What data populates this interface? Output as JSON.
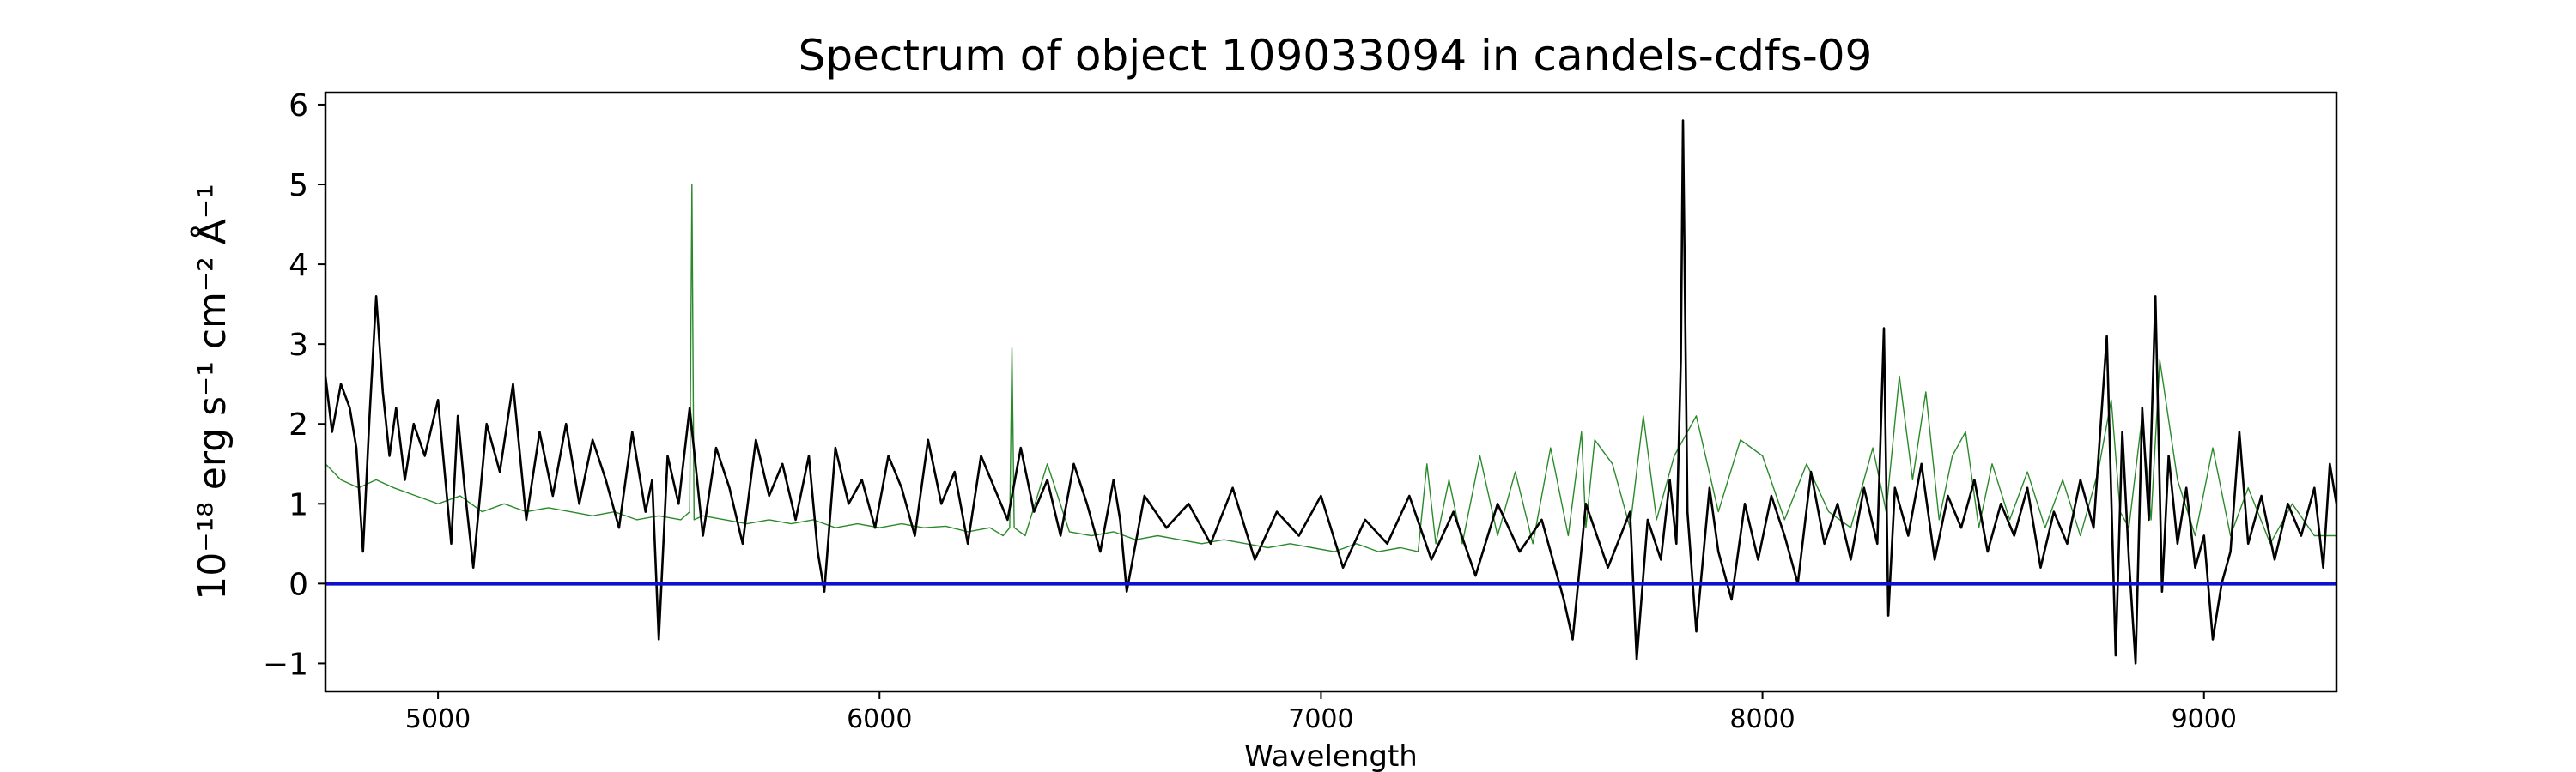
{
  "chart_data": {
    "type": "line",
    "title": "Spectrum of object 109033094 in candels-cdfs-09",
    "xlabel": "Wavelength",
    "ylabel": "10⁻¹⁸ erg s⁻¹ cm⁻² Å⁻¹",
    "xlim": [
      4745,
      9300
    ],
    "ylim": [
      -1.35,
      6.15
    ],
    "xticks": [
      5000,
      6000,
      7000,
      8000,
      9000
    ],
    "yticks": [
      -1,
      0,
      1,
      2,
      3,
      4,
      5,
      6
    ],
    "ytick_labels": [
      "−1",
      "0",
      "1",
      "2",
      "3",
      "4",
      "5",
      "6"
    ],
    "grid": false,
    "colors": {
      "flux": "#000000",
      "noise": "#2a8a2a",
      "zero": "#1010cc"
    },
    "series": [
      {
        "role": "flux",
        "x": [
          4745,
          4760,
          4780,
          4800,
          4815,
          4830,
          4845,
          4860,
          4875,
          4890,
          4905,
          4925,
          4945,
          4970,
          5000,
          5030,
          5045,
          5060,
          5080,
          5110,
          5140,
          5170,
          5200,
          5230,
          5260,
          5290,
          5320,
          5350,
          5380,
          5410,
          5440,
          5470,
          5485,
          5500,
          5520,
          5545,
          5570,
          5600,
          5630,
          5660,
          5690,
          5720,
          5750,
          5780,
          5810,
          5840,
          5860,
          5875,
          5900,
          5930,
          5960,
          5990,
          6020,
          6050,
          6080,
          6110,
          6140,
          6170,
          6200,
          6230,
          6260,
          6290,
          6320,
          6350,
          6380,
          6410,
          6440,
          6470,
          6500,
          6530,
          6545,
          6560,
          6600,
          6650,
          6700,
          6750,
          6800,
          6850,
          6900,
          6950,
          7000,
          7050,
          7100,
          7150,
          7200,
          7250,
          7300,
          7350,
          7400,
          7450,
          7500,
          7550,
          7570,
          7600,
          7650,
          7700,
          7715,
          7740,
          7770,
          7790,
          7805,
          7815,
          7820,
          7830,
          7850,
          7880,
          7900,
          7930,
          7960,
          7990,
          8020,
          8050,
          8080,
          8110,
          8140,
          8170,
          8200,
          8230,
          8260,
          8275,
          8285,
          8300,
          8330,
          8360,
          8390,
          8420,
          8450,
          8480,
          8510,
          8540,
          8570,
          8600,
          8630,
          8660,
          8690,
          8720,
          8750,
          8780,
          8800,
          8815,
          8830,
          8845,
          8860,
          8875,
          8890,
          8905,
          8920,
          8940,
          8960,
          8980,
          9000,
          9020,
          9040,
          9060,
          9080,
          9100,
          9130,
          9160,
          9190,
          9220,
          9250,
          9270,
          9285,
          9300
        ],
        "y": [
          2.6,
          1.9,
          2.5,
          2.2,
          1.7,
          0.4,
          2.1,
          3.6,
          2.4,
          1.6,
          2.2,
          1.3,
          2.0,
          1.6,
          2.3,
          0.5,
          2.1,
          1.2,
          0.2,
          2.0,
          1.4,
          2.5,
          0.8,
          1.9,
          1.1,
          2.0,
          1.0,
          1.8,
          1.3,
          0.7,
          1.9,
          0.9,
          1.3,
          -0.7,
          1.6,
          1.0,
          2.2,
          0.6,
          1.7,
          1.2,
          0.5,
          1.8,
          1.1,
          1.5,
          0.8,
          1.6,
          0.4,
          -0.1,
          1.7,
          1.0,
          1.3,
          0.7,
          1.6,
          1.2,
          0.6,
          1.8,
          1.0,
          1.4,
          0.5,
          1.6,
          1.2,
          0.8,
          1.7,
          0.9,
          1.3,
          0.6,
          1.5,
          1.0,
          0.4,
          1.3,
          0.8,
          -0.1,
          1.1,
          0.7,
          1.0,
          0.5,
          1.2,
          0.3,
          0.9,
          0.6,
          1.1,
          0.2,
          0.8,
          0.5,
          1.1,
          0.3,
          0.9,
          0.1,
          1.0,
          0.4,
          0.8,
          -0.2,
          -0.7,
          1.0,
          0.2,
          0.9,
          -0.95,
          0.8,
          0.3,
          1.3,
          0.5,
          2.8,
          5.8,
          0.9,
          -0.6,
          1.2,
          0.4,
          -0.2,
          1.0,
          0.3,
          1.1,
          0.6,
          0.0,
          1.4,
          0.5,
          1.0,
          0.3,
          1.2,
          0.5,
          3.2,
          -0.4,
          1.2,
          0.6,
          1.5,
          0.3,
          1.1,
          0.7,
          1.3,
          0.4,
          1.0,
          0.6,
          1.2,
          0.2,
          0.9,
          0.5,
          1.3,
          0.7,
          3.1,
          -0.9,
          1.9,
          0.3,
          -1.0,
          2.2,
          0.8,
          3.6,
          -0.1,
          1.6,
          0.5,
          1.2,
          0.2,
          0.6,
          -0.7,
          0.0,
          0.4,
          1.9,
          0.5,
          1.1,
          0.3,
          1.0,
          0.6,
          1.2,
          0.2,
          1.5,
          1.0
        ],
        "line_width": 2.6
      },
      {
        "role": "noise",
        "x": [
          4745,
          4780,
          4820,
          4860,
          4900,
          4950,
          5000,
          5050,
          5100,
          5150,
          5200,
          5250,
          5300,
          5350,
          5400,
          5450,
          5500,
          5550,
          5570,
          5575,
          5580,
          5600,
          5650,
          5700,
          5750,
          5800,
          5850,
          5900,
          5950,
          6000,
          6050,
          6100,
          6150,
          6200,
          6250,
          6280,
          6295,
          6300,
          6305,
          6330,
          6380,
          6430,
          6480,
          6530,
          6580,
          6630,
          6680,
          6730,
          6780,
          6830,
          6880,
          6930,
          6980,
          7030,
          7080,
          7130,
          7180,
          7220,
          7240,
          7260,
          7290,
          7320,
          7360,
          7400,
          7440,
          7480,
          7520,
          7560,
          7590,
          7600,
          7620,
          7660,
          7700,
          7730,
          7760,
          7800,
          7850,
          7900,
          7950,
          8000,
          8050,
          8100,
          8150,
          8200,
          8250,
          8280,
          8310,
          8340,
          8370,
          8400,
          8430,
          8460,
          8490,
          8520,
          8560,
          8600,
          8640,
          8680,
          8720,
          8760,
          8790,
          8810,
          8830,
          8860,
          8880,
          8900,
          8940,
          8980,
          9020,
          9060,
          9100,
          9150,
          9200,
          9250,
          9300
        ],
        "y": [
          1.5,
          1.3,
          1.2,
          1.3,
          1.2,
          1.1,
          1.0,
          1.1,
          0.9,
          1.0,
          0.9,
          0.95,
          0.9,
          0.85,
          0.9,
          0.8,
          0.85,
          0.8,
          0.9,
          5.0,
          0.8,
          0.85,
          0.8,
          0.75,
          0.8,
          0.75,
          0.8,
          0.7,
          0.75,
          0.7,
          0.75,
          0.7,
          0.72,
          0.65,
          0.7,
          0.6,
          0.7,
          2.95,
          0.7,
          0.6,
          1.5,
          0.65,
          0.6,
          0.65,
          0.55,
          0.6,
          0.55,
          0.5,
          0.55,
          0.5,
          0.45,
          0.5,
          0.45,
          0.4,
          0.5,
          0.4,
          0.45,
          0.4,
          1.5,
          0.5,
          1.3,
          0.5,
          1.6,
          0.6,
          1.4,
          0.5,
          1.7,
          0.6,
          1.9,
          0.7,
          1.8,
          1.5,
          0.7,
          2.1,
          0.8,
          1.6,
          2.1,
          0.9,
          1.8,
          1.6,
          0.8,
          1.5,
          0.9,
          0.7,
          1.7,
          0.9,
          2.6,
          1.3,
          2.4,
          0.8,
          1.6,
          1.9,
          0.7,
          1.5,
          0.8,
          1.4,
          0.7,
          1.3,
          0.6,
          1.4,
          2.3,
          0.9,
          0.7,
          2.1,
          0.8,
          2.8,
          1.3,
          0.6,
          1.7,
          0.6,
          1.2,
          0.5,
          1.0,
          0.6,
          0.6
        ],
        "line_width": 1.4
      },
      {
        "role": "zero",
        "x": [
          4745,
          9300
        ],
        "y": [
          0,
          0
        ],
        "line_width": 4.5
      }
    ]
  }
}
